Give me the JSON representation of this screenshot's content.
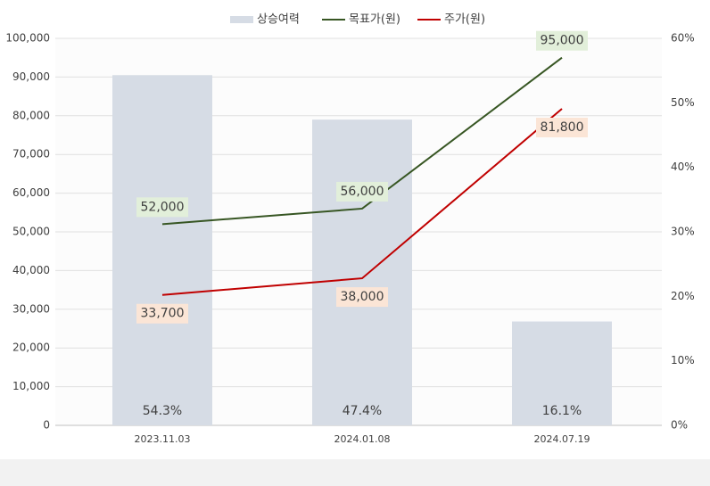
{
  "chart_data": {
    "type": "bar-line",
    "categories": [
      "2023.11.03",
      "2024.01.08",
      "2024.07.19"
    ],
    "series": [
      {
        "name": "상승여력",
        "type": "bar",
        "axis": "y2",
        "color": "#d6dce5",
        "values": [
          54.3,
          47.4,
          16.1
        ],
        "value_labels": [
          "54.3%",
          "47.4%",
          "16.1%"
        ]
      },
      {
        "name": "목표가(원)",
        "type": "line",
        "color": "#375623",
        "label_bg": "#e2efda",
        "values": [
          52000,
          56000,
          95000
        ],
        "value_labels": [
          "52,000",
          "56,000",
          "95,000"
        ]
      },
      {
        "name": "주가(원)",
        "type": "line",
        "color": "#c00000",
        "label_bg": "#fbe5d6",
        "values": [
          33700,
          38000,
          81800
        ],
        "value_labels": [
          "33,700",
          "38,000",
          "81,800"
        ]
      }
    ],
    "ylim": [
      0,
      100000
    ],
    "yticks": [
      0,
      {
        "value": 10000,
        "label": "10,000"
      },
      {
        "value": 20000,
        "label": "20,000"
      },
      {
        "value": 30000,
        "label": "30,000"
      },
      {
        "value": 40000,
        "label": "40,000"
      },
      {
        "value": 50000,
        "label": "50,000"
      },
      {
        "value": 60000,
        "label": "60,000"
      },
      {
        "value": 70000,
        "label": "70,000"
      },
      {
        "value": 80000,
        "label": "80,000"
      },
      {
        "value": 90000,
        "label": "90,000"
      },
      {
        "value": 100000,
        "label": "100,000"
      }
    ],
    "y2lim": [
      0,
      60
    ],
    "y2ticks": [
      {
        "value": 0,
        "label": "0%"
      },
      {
        "value": 10,
        "label": "10%"
      },
      {
        "value": 20,
        "label": "20%"
      },
      {
        "value": 30,
        "label": "30%"
      },
      {
        "value": 40,
        "label": "40%"
      },
      {
        "value": 50,
        "label": "50%"
      },
      {
        "value": 60,
        "label": "60%"
      }
    ],
    "grid": true,
    "legend": "top"
  }
}
